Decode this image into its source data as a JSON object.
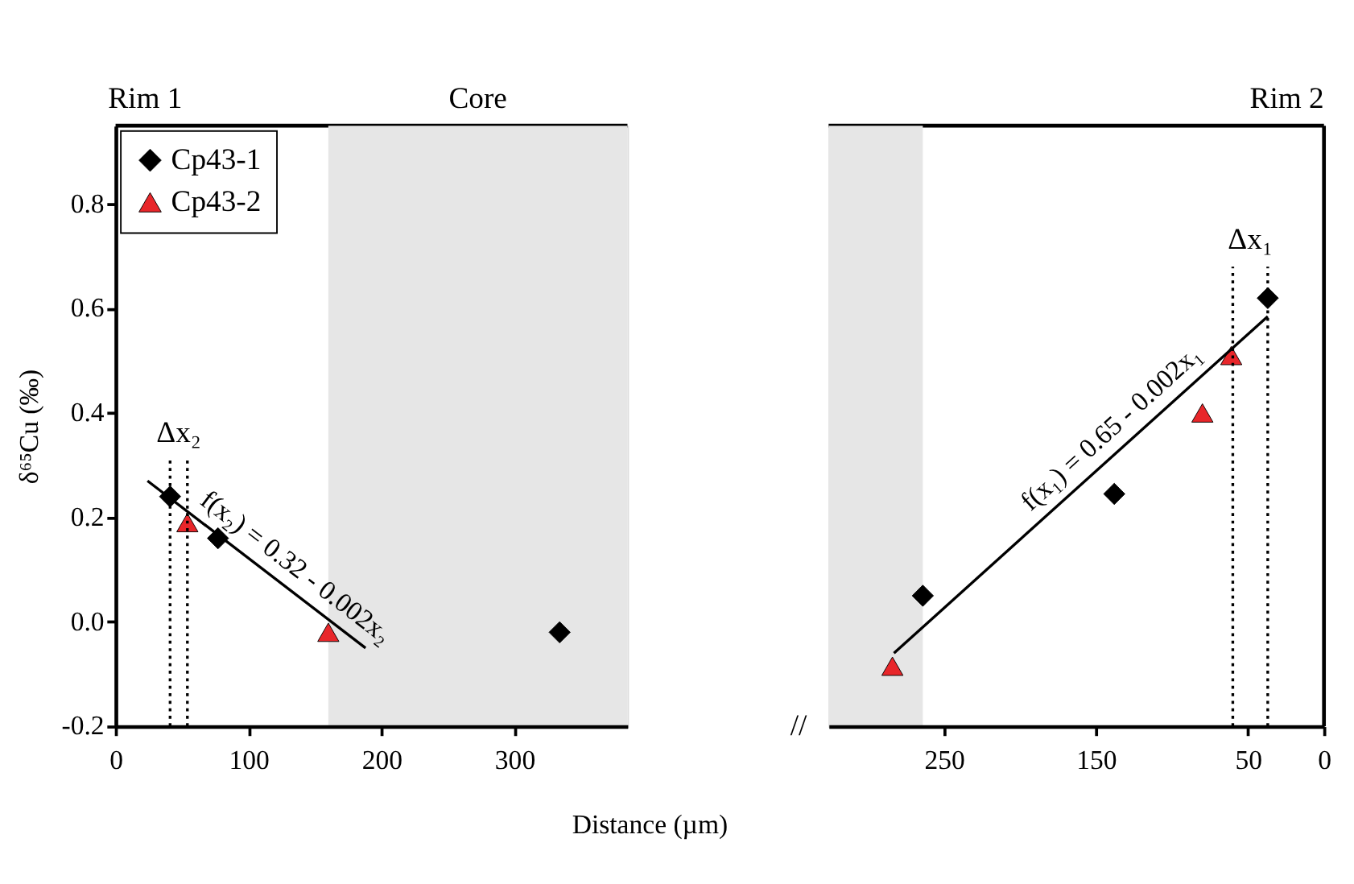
{
  "chart_data": [
    {
      "type": "scatter",
      "xlabel": "Distance (µm)",
      "ylabel": "δ⁶⁵Cu (‰)",
      "xlim": [
        0,
        385
      ],
      "xticks": [
        0,
        100,
        200,
        300
      ],
      "ylim": [
        -0.2,
        0.95
      ],
      "yticks": [
        {
          "value": -0.2,
          "label": "-0.2"
        },
        {
          "value": 0,
          "label": "0.0"
        },
        {
          "value": 0.2,
          "label": "0.2"
        },
        {
          "value": 0.4,
          "label": "0.4"
        },
        {
          "value": 0.6,
          "label": "0.6"
        },
        {
          "value": 0.8,
          "label": "0.8"
        }
      ],
      "legend": "top left",
      "grid": false,
      "series": [
        {
          "name": "Cp43-1",
          "marker": "diamond",
          "color": "#000000",
          "x": [
            41,
            77,
            334
          ],
          "values": [
            0.24,
            0.16,
            -0.02
          ]
        },
        {
          "name": "Cp43-2",
          "marker": "triangle",
          "color": "#e8262a",
          "x": [
            54,
            160
          ],
          "values": [
            0.19,
            -0.02
          ]
        },
        {
          "type": "line",
          "color": "#000000",
          "line_style": "solid",
          "x": [
            24,
            188
          ],
          "values": [
            0.27,
            -0.05
          ]
        },
        {
          "type": "line",
          "color": "#000000",
          "line_style": "dotted",
          "x": [
            41,
            41
          ],
          "values": [
            -0.2,
            0.31
          ]
        },
        {
          "type": "line",
          "color": "#000000",
          "line_style": "dotted",
          "x": [
            54,
            54
          ],
          "values": [
            -0.2,
            0.31
          ]
        }
      ],
      "bands": [
        {
          "axis": "x",
          "from": 160,
          "to": 385,
          "label": "Core",
          "color": "#e6e6e6"
        }
      ],
      "annotations": [
        "Rim 1",
        "Δx₂",
        "f(x₂) = 0.32 - 0.002x₂"
      ]
    },
    {
      "type": "scatter",
      "xlim": [
        326,
        0
      ],
      "xticks": [
        250,
        150,
        50,
        0
      ],
      "ylim": [
        -0.2,
        0.95
      ],
      "tick_labels": "x",
      "grid": false,
      "series": [
        {
          "marker": "diamond",
          "color": "#000000",
          "x": [
            264,
            138,
            37
          ],
          "values": [
            0.05,
            0.245,
            0.62
          ]
        },
        {
          "marker": "triangle",
          "color": "#e8262a",
          "x": [
            284,
            80,
            61
          ],
          "values": [
            -0.085,
            0.4,
            0.51
          ]
        },
        {
          "type": "line",
          "color": "#000000",
          "line_style": "solid",
          "x": [
            283,
            37
          ],
          "values": [
            -0.06,
            0.585
          ]
        },
        {
          "type": "line",
          "color": "#000000",
          "line_style": "dotted",
          "x": [
            60,
            60
          ],
          "values": [
            -0.2,
            0.68
          ]
        },
        {
          "type": "line",
          "color": "#000000",
          "line_style": "dotted",
          "x": [
            37,
            37
          ],
          "values": [
            -0.2,
            0.68
          ]
        }
      ],
      "bands": [
        {
          "axis": "x",
          "from": 326,
          "to": 264,
          "color": "#e6e6e6"
        }
      ],
      "annotations": [
        "Rim 2",
        "Δx₁",
        "f(x₁) = 0.65 - 0.002x₁",
        "//"
      ]
    }
  ]
}
